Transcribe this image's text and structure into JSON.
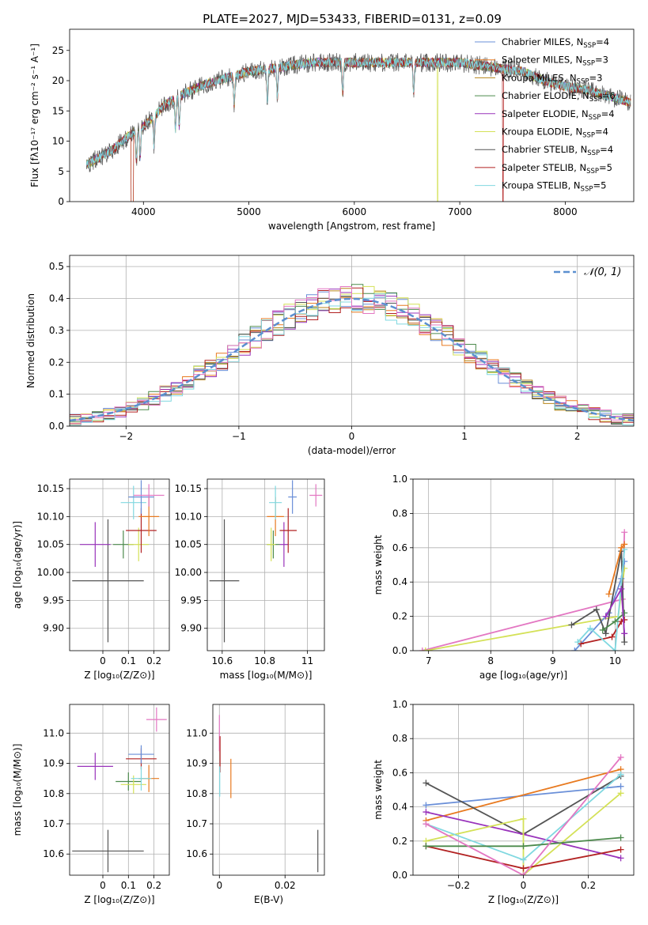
{
  "figure_title": "PLATE=2027, MJD=53433, FIBERID=0131, z=0.09",
  "colors": {
    "Chabrier MILES": "#6a8fd8",
    "Salpeter MILES": "#e87a20",
    "Kroupa MILES": "#b8861b",
    "Chabrier ELODIE": "#4c8a4c",
    "Salpeter ELODIE": "#9933bb",
    "Kroupa ELODIE": "#d4e157",
    "Chabrier STELIB": "#555555",
    "Salpeter STELIB": "#b22222",
    "Kroupa STELIB": "#80d8e0",
    "extra_pink": "#e377c2"
  },
  "chart_data": [
    {
      "id": "spectrum",
      "type": "line",
      "xlabel": "wavelength [Angstrom, rest frame]",
      "ylabel": "Flux [fλ10⁻¹⁷ erg cm⁻² s⁻¹ A⁻¹]",
      "xlim": [
        3300,
        8650
      ],
      "ylim": [
        0,
        28.5
      ],
      "xticks": [
        4000,
        5000,
        6000,
        7000,
        8000
      ],
      "yticks": [
        0,
        5,
        10,
        15,
        20,
        25
      ],
      "legend_position": "top-right",
      "continuum": {
        "x": [
          3450,
          3600,
          3700,
          3800,
          3900,
          4000,
          4100,
          4200,
          4300,
          4400,
          4600,
          4800,
          5000,
          5200,
          5400,
          5600,
          5800,
          6000,
          6200,
          6400,
          6600,
          6800,
          7000,
          7200,
          7400,
          7600,
          7800,
          8000,
          8200,
          8400,
          8600
        ],
        "y": [
          6,
          7.5,
          8.5,
          10,
          11.5,
          12.5,
          14,
          16,
          17,
          18,
          19.5,
          20.5,
          21.5,
          22,
          22.5,
          23,
          23,
          23,
          23,
          23,
          23,
          23,
          23,
          22.5,
          22,
          21.5,
          20,
          19,
          18.5,
          17.5,
          16.5
        ]
      },
      "series": [
        {
          "name": "Chabrier MILES, N_SSP=4",
          "label_main": "Chabrier MILES, N",
          "label_sub": "SSP",
          "label_tail": "=4",
          "color": "#6a8fd8",
          "drop": null
        },
        {
          "name": "Salpeter MILES, N_SSP=3",
          "label_main": "Salpeter MILES, N",
          "label_sub": "SSP",
          "label_tail": "=3",
          "color": "#e87a20",
          "drop": null
        },
        {
          "name": "Kroupa MILES, N_SSP=3",
          "label_main": "Kroupa MILES, N",
          "label_sub": "SSP",
          "label_tail": "=3",
          "color": "#b8861b",
          "drop": null
        },
        {
          "name": "Chabrier ELODIE, N_SSP=6",
          "label_main": "Chabrier ELODIE, N",
          "label_sub": "SSP",
          "label_tail": "=6",
          "color": "#4c8a4c",
          "drop": null
        },
        {
          "name": "Salpeter ELODIE, N_SSP=4",
          "label_main": "Salpeter ELODIE, N",
          "label_sub": "SSP",
          "label_tail": "=4",
          "color": "#9933bb",
          "drop": null
        },
        {
          "name": "Kroupa ELODIE, N_SSP=4",
          "label_main": "Kroupa ELODIE, N",
          "label_sub": "SSP",
          "label_tail": "=4",
          "color": "#d4e157",
          "drop": 6790
        },
        {
          "name": "Chabrier STELIB, N_SSP=4",
          "label_main": "Chabrier STELIB, N",
          "label_sub": "SSP",
          "label_tail": "=4",
          "color": "#555555",
          "drop": null
        },
        {
          "name": "Salpeter STELIB, N_SSP=5",
          "label_main": "Salpeter STELIB, N",
          "label_sub": "SSP",
          "label_tail": "=5",
          "color": "#b22222",
          "drop": 7410
        },
        {
          "name": "Kroupa STELIB, N_SSP=5",
          "label_main": "Kroupa STELIB, N",
          "label_sub": "SSP",
          "label_tail": "=5",
          "color": "#80d8e0",
          "drop": null
        }
      ]
    },
    {
      "id": "residuals",
      "type": "line",
      "xlabel": "(data-model)/error",
      "ylabel": "Normed distribution",
      "xlim": [
        -2.5,
        2.5
      ],
      "ylim": [
        0,
        0.535
      ],
      "xticks": [
        -2,
        -1,
        0,
        1,
        2
      ],
      "yticks": [
        0.0,
        0.1,
        0.2,
        0.3,
        0.4,
        0.5
      ],
      "grid": true,
      "legend_position": "top-right",
      "gaussian_label": "𝒩(0, 1)",
      "gaussian_color": "#5b8fd0",
      "bin_width": 0.1,
      "series_order": [
        "Chabrier MILES",
        "Salpeter MILES",
        "Kroupa MILES",
        "Chabrier ELODIE",
        "Salpeter ELODIE",
        "Kroupa ELODIE",
        "Chabrier STELIB",
        "Salpeter STELIB",
        "Kroupa STELIB",
        "extra_pink"
      ]
    },
    {
      "id": "age_vs_Z",
      "type": "scatter",
      "xlabel": "Z [log₁₀(Z/Z⊙)]",
      "ylabel": "age  [log₁₀(age/yr)]",
      "xlim": [
        -0.13,
        0.26
      ],
      "ylim": [
        9.86,
        10.167
      ],
      "xticks": [
        0.0,
        0.1,
        0.2
      ],
      "yticks": [
        9.9,
        9.95,
        10.0,
        10.05,
        10.1,
        10.15
      ],
      "grid": true,
      "points": [
        {
          "series": "Chabrier STELIB",
          "x": 0.02,
          "y": 9.985,
          "xerr": 0.14,
          "yerr": 0.11
        },
        {
          "series": "Salpeter ELODIE",
          "x": -0.03,
          "y": 10.05,
          "xerr": 0.06,
          "yerr": 0.04
        },
        {
          "series": "Chabrier ELODIE",
          "x": 0.08,
          "y": 10.05,
          "xerr": 0.04,
          "yerr": 0.025
        },
        {
          "series": "Kroupa ELODIE",
          "x": 0.14,
          "y": 10.05,
          "xerr": 0.04,
          "yerr": 0.03
        },
        {
          "series": "Salpeter STELIB",
          "x": 0.15,
          "y": 10.075,
          "xerr": 0.06,
          "yerr": 0.04
        },
        {
          "series": "Salpeter MILES",
          "x": 0.18,
          "y": 10.1,
          "xerr": 0.04,
          "yerr": 0.035
        },
        {
          "series": "Kroupa STELIB",
          "x": 0.12,
          "y": 10.125,
          "xerr": 0.05,
          "yerr": 0.03
        },
        {
          "series": "Chabrier MILES",
          "x": 0.15,
          "y": 10.135,
          "xerr": 0.05,
          "yerr": 0.03
        },
        {
          "series": "extra_pink",
          "x": 0.18,
          "y": 10.138,
          "xerr": 0.06,
          "yerr": 0.02
        }
      ]
    },
    {
      "id": "age_vs_mass",
      "type": "scatter",
      "xlabel": "mass [log₁₀(M/M⊙)]",
      "ylabel": "",
      "xlim": [
        10.53,
        11.08
      ],
      "ylim": [
        9.86,
        10.167
      ],
      "xticks": [
        10.6,
        10.8,
        11.0
      ],
      "yticks": [
        9.9,
        9.95,
        10.0,
        10.05,
        10.1,
        10.15
      ],
      "grid": true,
      "points": [
        {
          "series": "Chabrier STELIB",
          "x": 10.61,
          "y": 9.985,
          "xerr": 0.07,
          "yerr": 0.11
        },
        {
          "series": "Salpeter ELODIE",
          "x": 10.89,
          "y": 10.05,
          "xerr": 0.02,
          "yerr": 0.04
        },
        {
          "series": "Chabrier ELODIE",
          "x": 10.84,
          "y": 10.05,
          "xerr": 0.03,
          "yerr": 0.025
        },
        {
          "series": "Kroupa ELODIE",
          "x": 10.83,
          "y": 10.05,
          "xerr": 0.02,
          "yerr": 0.03
        },
        {
          "series": "Salpeter STELIB",
          "x": 10.91,
          "y": 10.075,
          "xerr": 0.04,
          "yerr": 0.04
        },
        {
          "series": "Salpeter MILES",
          "x": 10.85,
          "y": 10.1,
          "xerr": 0.04,
          "yerr": 0.035
        },
        {
          "series": "Kroupa STELIB",
          "x": 10.85,
          "y": 10.125,
          "xerr": 0.03,
          "yerr": 0.03
        },
        {
          "series": "Chabrier MILES",
          "x": 10.93,
          "y": 10.135,
          "xerr": 0.02,
          "yerr": 0.03
        },
        {
          "series": "extra_pink",
          "x": 11.04,
          "y": 10.138,
          "xerr": 0.03,
          "yerr": 0.02
        }
      ]
    },
    {
      "id": "weight_vs_age",
      "type": "line",
      "xlabel": "age  [log₁₀(age/yr)]",
      "ylabel": "mass weight",
      "xlim": [
        6.75,
        10.3
      ],
      "ylim": [
        0,
        1.0
      ],
      "xticks": [
        7,
        8,
        9,
        10
      ],
      "yticks": [
        0.0,
        0.2,
        0.4,
        0.6,
        0.8,
        1.0
      ],
      "grid": true,
      "series": [
        {
          "series": "extra_pink",
          "x": [
            6.9,
            10.12,
            10.15
          ],
          "y": [
            0.0,
            0.3,
            0.69
          ]
        },
        {
          "series": "Kroupa ELODIE",
          "x": [
            6.95,
            10.05,
            10.15
          ],
          "y": [
            0.0,
            0.2,
            0.48
          ]
        },
        {
          "series": "Chabrier MILES",
          "x": [
            9.35,
            9.9,
            10.1,
            10.15
          ],
          "y": [
            0.0,
            0.22,
            0.42,
            0.52
          ]
        },
        {
          "series": "Chabrier STELIB",
          "x": [
            9.3,
            9.7,
            9.85,
            10.1,
            10.15
          ],
          "y": [
            0.15,
            0.24,
            0.1,
            0.58,
            0.05
          ]
        },
        {
          "series": "Salpeter STELIB",
          "x": [
            9.45,
            9.95,
            10.1,
            10.15
          ],
          "y": [
            0.04,
            0.08,
            0.17,
            0.18
          ]
        },
        {
          "series": "Kroupa STELIB",
          "x": [
            9.4,
            9.6,
            10.0,
            10.15
          ],
          "y": [
            0.05,
            0.13,
            0.0,
            0.59
          ]
        },
        {
          "series": "Chabrier ELODIE",
          "x": [
            9.8,
            10.0,
            10.15
          ],
          "y": [
            0.12,
            0.17,
            0.22
          ]
        },
        {
          "series": "Salpeter MILES",
          "x": [
            9.9,
            10.1,
            10.15
          ],
          "y": [
            0.33,
            0.6,
            0.62
          ]
        },
        {
          "series": "Salpeter ELODIE",
          "x": [
            9.85,
            10.1,
            10.15
          ],
          "y": [
            0.2,
            0.36,
            0.1
          ]
        }
      ]
    },
    {
      "id": "mass_vs_Z",
      "type": "scatter",
      "xlabel": "Z [log₁₀(Z/Z⊙)]",
      "ylabel": "mass [log₁₀(M/M⊙)]",
      "xlim": [
        -0.13,
        0.26
      ],
      "ylim": [
        10.53,
        11.095
      ],
      "xticks": [
        0.0,
        0.1,
        0.2
      ],
      "yticks": [
        10.6,
        10.7,
        10.8,
        10.9,
        11.0
      ],
      "grid": true,
      "points": [
        {
          "series": "Chabrier STELIB",
          "x": 0.02,
          "y": 10.61,
          "xerr": 0.14,
          "yerr": 0.07
        },
        {
          "series": "Salpeter ELODIE",
          "x": -0.03,
          "y": 10.89,
          "xerr": 0.07,
          "yerr": 0.045
        },
        {
          "series": "Chabrier ELODIE",
          "x": 0.1,
          "y": 10.84,
          "xerr": 0.05,
          "yerr": 0.03
        },
        {
          "series": "Kroupa ELODIE",
          "x": 0.12,
          "y": 10.83,
          "xerr": 0.05,
          "yerr": 0.03
        },
        {
          "series": "Salpeter STELIB",
          "x": 0.15,
          "y": 10.915,
          "xerr": 0.06,
          "yerr": 0.035
        },
        {
          "series": "Salpeter MILES",
          "x": 0.18,
          "y": 10.85,
          "xerr": 0.04,
          "yerr": 0.045
        },
        {
          "series": "Kroupa STELIB",
          "x": 0.15,
          "y": 10.85,
          "xerr": 0.04,
          "yerr": 0.04
        },
        {
          "series": "Chabrier MILES",
          "x": 0.15,
          "y": 10.93,
          "xerr": 0.05,
          "yerr": 0.03
        },
        {
          "series": "extra_pink",
          "x": 0.21,
          "y": 11.045,
          "xerr": 0.04,
          "yerr": 0.04
        }
      ]
    },
    {
      "id": "mass_vs_ebv",
      "type": "scatter",
      "xlabel": "E(B-V)",
      "ylabel": "",
      "xlim": [
        -0.002,
        0.032
      ],
      "ylim": [
        10.53,
        11.095
      ],
      "xticks": [
        0.0,
        0.02
      ],
      "yticks": [
        10.6,
        10.7,
        10.8,
        10.9,
        11.0
      ],
      "grid": true,
      "points": [
        {
          "series": "Chabrier STELIB",
          "x": 0.03,
          "y": 10.61,
          "xerr": 0,
          "yerr": 0.07
        },
        {
          "series": "Salpeter MILES",
          "x": 0.0035,
          "y": 10.85,
          "xerr": 0,
          "yerr": 0.065
        },
        {
          "series": "extra_pink",
          "x": 0.0,
          "y": 11.0,
          "xerr": 0,
          "yerr": 0.06
        },
        {
          "series": "Salpeter STELIB",
          "x": 0.0002,
          "y": 10.93,
          "xerr": 0,
          "yerr": 0.06
        },
        {
          "series": "Kroupa STELIB",
          "x": 0.0001,
          "y": 10.84,
          "xerr": 0,
          "yerr": 0.05
        }
      ]
    },
    {
      "id": "weight_vs_Z",
      "type": "line",
      "xlabel": "Z [log₁₀(Z/Z⊙)]",
      "ylabel": "mass weight",
      "xlim": [
        -0.34,
        0.34
      ],
      "ylim": [
        0,
        1.0
      ],
      "xticks": [
        -0.2,
        0.0,
        0.2
      ],
      "yticks": [
        0.0,
        0.2,
        0.4,
        0.6,
        0.8,
        1.0
      ],
      "grid": true,
      "series": [
        {
          "series": "Chabrier MILES",
          "x": [
            -0.3,
            0.3
          ],
          "y": [
            0.41,
            0.52
          ]
        },
        {
          "series": "Salpeter MILES",
          "x": [
            -0.3,
            0.3
          ],
          "y": [
            0.32,
            0.62
          ]
        },
        {
          "series": "Chabrier STELIB",
          "x": [
            -0.3,
            0.0,
            0.3
          ],
          "y": [
            0.54,
            0.24,
            0.58
          ]
        },
        {
          "series": "Salpeter ELODIE",
          "x": [
            -0.3,
            0.0,
            0.3
          ],
          "y": [
            0.37,
            0.24,
            0.1
          ]
        },
        {
          "series": "Kroupa ELODIE",
          "x": [
            -0.3,
            0.0,
            0.0,
            0.3
          ],
          "y": [
            0.2,
            0.33,
            0.0,
            0.48
          ]
        },
        {
          "series": "Kroupa STELIB",
          "x": [
            -0.3,
            0.0,
            0.3
          ],
          "y": [
            0.3,
            0.09,
            0.59
          ]
        },
        {
          "series": "Salpeter STELIB",
          "x": [
            -0.3,
            0.0,
            0.3
          ],
          "y": [
            0.17,
            0.04,
            0.15
          ]
        },
        {
          "series": "Chabrier ELODIE",
          "x": [
            -0.3,
            0.0,
            0.3
          ],
          "y": [
            0.17,
            0.17,
            0.22
          ]
        },
        {
          "series": "extra_pink",
          "x": [
            -0.3,
            0.0,
            0.3
          ],
          "y": [
            0.3,
            0.0,
            0.69
          ]
        }
      ]
    }
  ]
}
